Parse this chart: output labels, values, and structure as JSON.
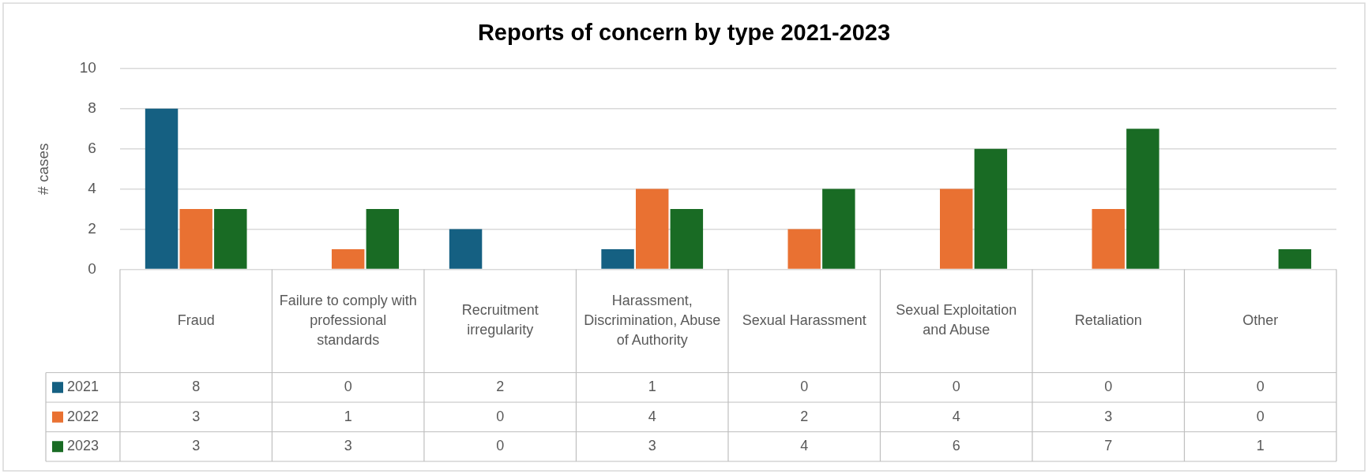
{
  "chart_data": {
    "type": "bar",
    "title": "Reports of concern by type 2021-2023",
    "ylabel": "# cases",
    "categories": [
      "Fraud",
      "Failure to comply with professional standards",
      "Recruitment irregularity",
      "Harassment, Discrimination, Abuse of Authority",
      "Sexual Harassment",
      "Sexual Exploitation and Abuse",
      "Retaliation",
      "Other"
    ],
    "series": [
      {
        "name": "2021",
        "color": "#156082",
        "values": [
          8,
          0,
          2,
          1,
          0,
          0,
          0,
          0
        ]
      },
      {
        "name": "2022",
        "color": "#e97132",
        "values": [
          3,
          1,
          0,
          4,
          2,
          4,
          3,
          0
        ]
      },
      {
        "name": "2023",
        "color": "#196b24",
        "values": [
          3,
          3,
          0,
          3,
          4,
          6,
          7,
          1
        ]
      }
    ],
    "ylim": [
      0,
      10
    ],
    "yticks": [
      0,
      2,
      4,
      6,
      8,
      10
    ],
    "grid": "y",
    "legend": "bottom",
    "data_labels": true
  }
}
